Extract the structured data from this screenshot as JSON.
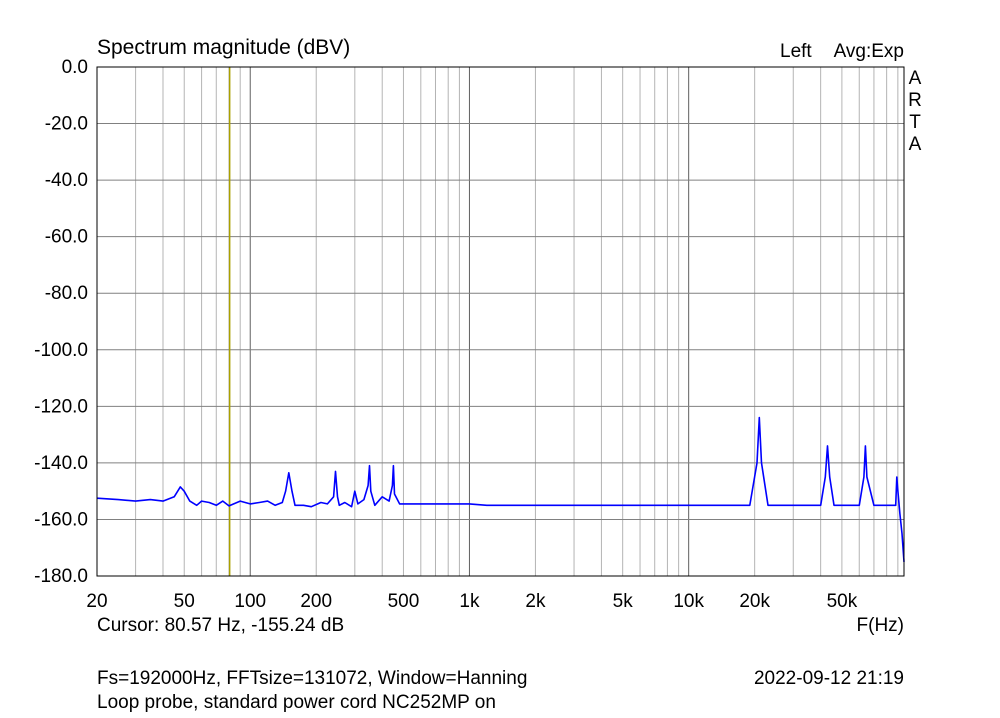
{
  "chart_data": {
    "type": "line",
    "title": "Spectrum magnitude (dBV)",
    "channel": "Left",
    "averaging": "Avg:Exp",
    "watermark": "ARTA",
    "xlabel": "F(Hz)",
    "ylabel": "",
    "x_scale": "log",
    "xlim": [
      20,
      96000
    ],
    "ylim": [
      -180,
      0
    ],
    "grid": true,
    "x_ticks": [
      {
        "value": 20,
        "label": "20"
      },
      {
        "value": 50,
        "label": "50"
      },
      {
        "value": 100,
        "label": "100"
      },
      {
        "value": 200,
        "label": "200"
      },
      {
        "value": 500,
        "label": "500"
      },
      {
        "value": 1000,
        "label": "1k"
      },
      {
        "value": 2000,
        "label": "2k"
      },
      {
        "value": 5000,
        "label": "5k"
      },
      {
        "value": 10000,
        "label": "10k"
      },
      {
        "value": 20000,
        "label": "20k"
      },
      {
        "value": 50000,
        "label": "50k"
      }
    ],
    "y_ticks": [
      {
        "value": 0,
        "label": "0.0"
      },
      {
        "value": -20,
        "label": "-20.0"
      },
      {
        "value": -40,
        "label": "-40.0"
      },
      {
        "value": -60,
        "label": "-60.0"
      },
      {
        "value": -80,
        "label": "-80.0"
      },
      {
        "value": -100,
        "label": "-100.0"
      },
      {
        "value": -120,
        "label": "-120.0"
      },
      {
        "value": -140,
        "label": "-140.0"
      },
      {
        "value": -160,
        "label": "-160.0"
      },
      {
        "value": -180,
        "label": "-180.0"
      }
    ],
    "series": [
      {
        "color": "#0000ff",
        "x": [
          20,
          25,
          30,
          35,
          40,
          45,
          48,
          50,
          53,
          57,
          60,
          65,
          70,
          75,
          80,
          90,
          100,
          110,
          120,
          130,
          140,
          145,
          150,
          155,
          160,
          175,
          190,
          210,
          225,
          240,
          245,
          250,
          255,
          270,
          290,
          300,
          310,
          330,
          345,
          350,
          355,
          370,
          400,
          430,
          445,
          450,
          455,
          480,
          520,
          580,
          640,
          700,
          800,
          900,
          1000,
          1200,
          1500,
          2000,
          3000,
          5000,
          7000,
          10000,
          15000,
          19000,
          20500,
          21000,
          21500,
          23000,
          30000,
          40000,
          42000,
          43000,
          44000,
          46000,
          55000,
          60000,
          63000,
          64000,
          65000,
          70000,
          80000,
          85000,
          88000,
          89000,
          90000,
          92000,
          94000,
          96000
        ],
        "y": [
          -152.5,
          -153,
          -153.5,
          -153,
          -153.5,
          -152,
          -148.5,
          -150,
          -153.5,
          -155,
          -153.5,
          -154,
          -155,
          -153.5,
          -155.2,
          -153.5,
          -154.5,
          -154,
          -153.5,
          -155,
          -154,
          -150,
          -143.5,
          -150,
          -155,
          -155,
          -155.5,
          -154,
          -154.5,
          -152,
          -143,
          -152,
          -155,
          -154,
          -155.5,
          -150,
          -154.5,
          -153,
          -148,
          -141,
          -150,
          -155,
          -152,
          -153.5,
          -148,
          -141,
          -151,
          -154.5,
          -154.5,
          -154.5,
          -154.5,
          -154.5,
          -154.5,
          -154.5,
          -154.5,
          -155,
          -155,
          -155,
          -155,
          -155,
          -155,
          -155,
          -155,
          -155,
          -140,
          -124,
          -140,
          -155,
          -155,
          -155,
          -145,
          -134,
          -145,
          -155,
          -155,
          -155,
          -145,
          -134,
          -145,
          -155,
          -155,
          -155,
          -155,
          -145,
          -150,
          -158,
          -165,
          -175
        ]
      }
    ],
    "cursor": {
      "x": 80.57,
      "color": "#aaa000"
    }
  },
  "footer": {
    "cursor_readout": "Cursor: 80.57 Hz, -155.24 dB",
    "params": "Fs=192000Hz, FFTsize=131072, Window=Hanning",
    "timestamp": "2022-09-12  21:19",
    "note": "Loop probe, standard power cord NC252MP on"
  }
}
